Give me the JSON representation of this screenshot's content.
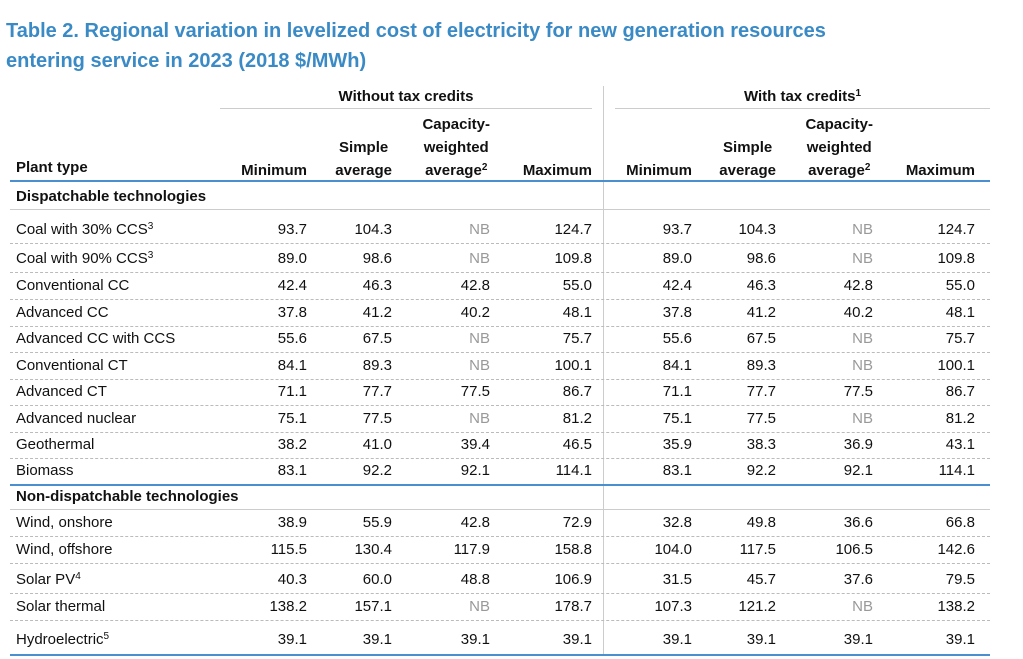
{
  "title": [
    "Table 2. Regional variation in levelized cost of electricity for new generation resources",
    "entering service in 2023 (2018 $/MWh)"
  ],
  "header": {
    "plant_type": "Plant type",
    "groups": [
      {
        "label": "Without tax credits",
        "columns": [
          {
            "lines": [
              "Minimum"
            ]
          },
          {
            "lines": [
              "Simple",
              "average"
            ]
          },
          {
            "lines": [
              "Capacity-",
              "weighted",
              "average"
            ],
            "note": "2"
          },
          {
            "lines": [
              "Maximum"
            ]
          }
        ]
      },
      {
        "label": "With tax credits",
        "note": "1",
        "columns": [
          {
            "lines": [
              "Minimum"
            ]
          },
          {
            "lines": [
              "Simple",
              "average"
            ]
          },
          {
            "lines": [
              "Capacity-",
              "weighted",
              "average"
            ],
            "note": "2"
          },
          {
            "lines": [
              "Maximum"
            ]
          }
        ]
      }
    ]
  },
  "sections": [
    {
      "title": "Dispatchable technologies",
      "rows": [
        {
          "label": "Coal with 30% CCS",
          "note": "3",
          "values": [
            "93.7",
            "104.3",
            "NB",
            "124.7",
            "93.7",
            "104.3",
            "NB",
            "124.7"
          ]
        },
        {
          "label": "Coal with 90% CCS",
          "note": "3",
          "values": [
            "89.0",
            "98.6",
            "NB",
            "109.8",
            "89.0",
            "98.6",
            "NB",
            "109.8"
          ]
        },
        {
          "label": "Conventional CC",
          "values": [
            "42.4",
            "46.3",
            "42.8",
            "55.0",
            "42.4",
            "46.3",
            "42.8",
            "55.0"
          ]
        },
        {
          "label": "Advanced CC",
          "values": [
            "37.8",
            "41.2",
            "40.2",
            "48.1",
            "37.8",
            "41.2",
            "40.2",
            "48.1"
          ]
        },
        {
          "label": "Advanced CC with CCS",
          "values": [
            "55.6",
            "67.5",
            "NB",
            "75.7",
            "55.6",
            "67.5",
            "NB",
            "75.7"
          ]
        },
        {
          "label": "Conventional CT",
          "values": [
            "84.1",
            "89.3",
            "NB",
            "100.1",
            "84.1",
            "89.3",
            "NB",
            "100.1"
          ]
        },
        {
          "label": "Advanced CT",
          "values": [
            "71.1",
            "77.7",
            "77.5",
            "86.7",
            "71.1",
            "77.7",
            "77.5",
            "86.7"
          ]
        },
        {
          "label": "Advanced nuclear",
          "values": [
            "75.1",
            "77.5",
            "NB",
            "81.2",
            "75.1",
            "77.5",
            "NB",
            "81.2"
          ]
        },
        {
          "label": "Geothermal",
          "values": [
            "38.2",
            "41.0",
            "39.4",
            "46.5",
            "35.9",
            "38.3",
            "36.9",
            "43.1"
          ]
        },
        {
          "label": "Biomass",
          "values": [
            "83.1",
            "92.2",
            "92.1",
            "114.1",
            "83.1",
            "92.2",
            "92.1",
            "114.1"
          ]
        }
      ]
    },
    {
      "title": "Non-dispatchable technologies",
      "rows": [
        {
          "label": "Wind, onshore",
          "values": [
            "38.9",
            "55.9",
            "42.8",
            "72.9",
            "32.8",
            "49.8",
            "36.6",
            "66.8"
          ]
        },
        {
          "label": "Wind, offshore",
          "values": [
            "115.5",
            "130.4",
            "117.9",
            "158.8",
            "104.0",
            "117.5",
            "106.5",
            "142.6"
          ]
        },
        {
          "label": "Solar PV",
          "note": "4",
          "values": [
            "40.3",
            "60.0",
            "48.8",
            "106.9",
            "31.5",
            "45.7",
            "37.6",
            "79.5"
          ]
        },
        {
          "label": "Solar thermal",
          "values": [
            "138.2",
            "157.1",
            "NB",
            "178.7",
            "107.3",
            "121.2",
            "NB",
            "138.2"
          ]
        },
        {
          "label": "Hydroelectric",
          "note": "5",
          "values": [
            "39.1",
            "39.1",
            "39.1",
            "39.1",
            "39.1",
            "39.1",
            "39.1",
            "39.1"
          ]
        }
      ]
    }
  ]
}
